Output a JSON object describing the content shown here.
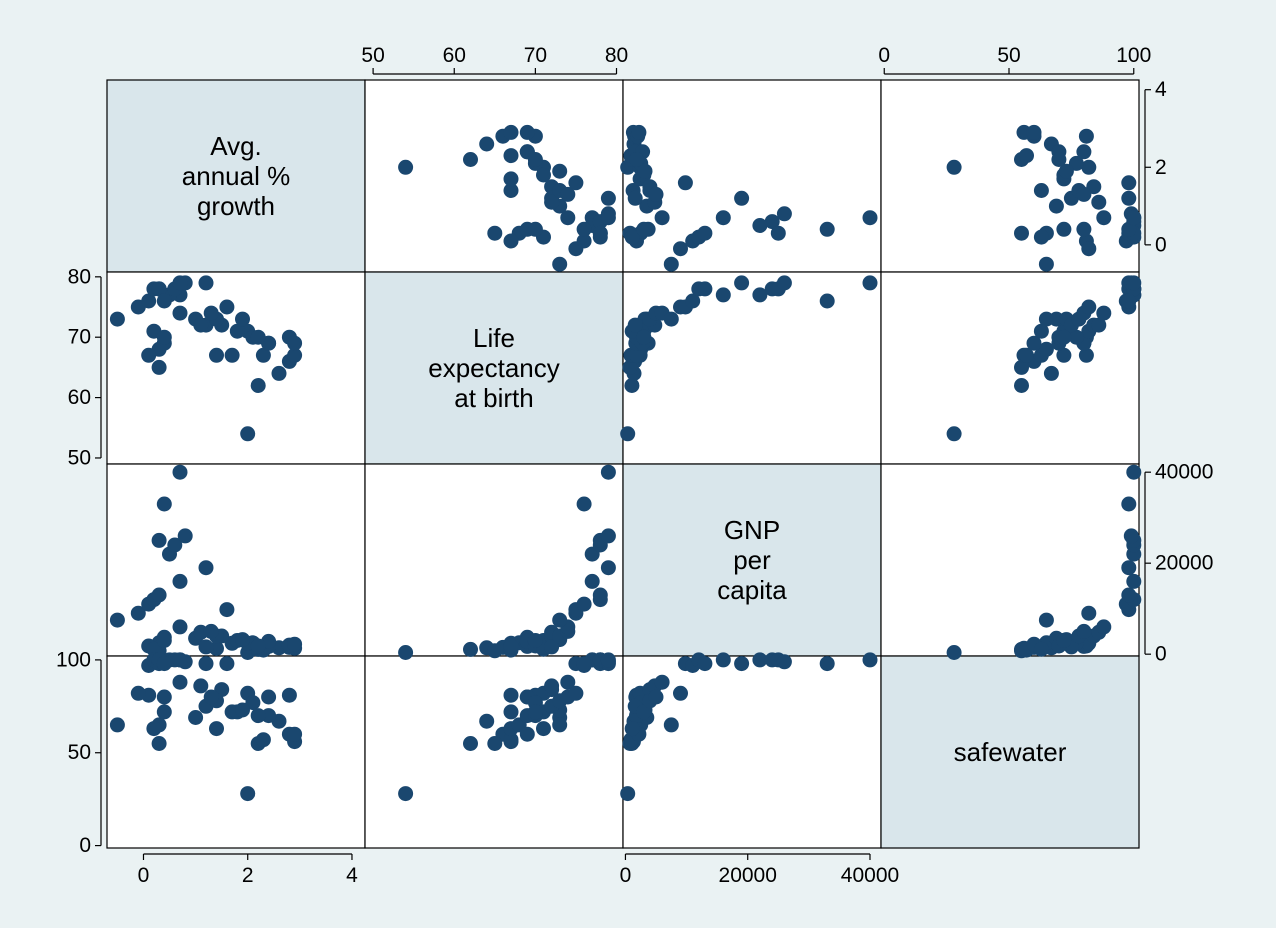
{
  "colors": {
    "background": "#eaf2f3",
    "cell_bg": "#ffffff",
    "diag_bg": "#d9e6eb",
    "marker": "#1a476f",
    "frame": "#000000"
  },
  "chart_data": {
    "type": "scatter",
    "subtype": "scatter-matrix",
    "grid": false,
    "legend": "none",
    "variables": [
      {
        "key": "growth",
        "label_lines": [
          "Avg.",
          "annual %",
          "growth"
        ],
        "range": [
          -0.7,
          4.25
        ],
        "ticks": [
          "0",
          "2",
          "4"
        ]
      },
      {
        "key": "lexp",
        "label_lines": [
          "Life",
          "expectancy",
          "at birth"
        ],
        "range": [
          49.0,
          80.8
        ],
        "ticks": [
          "50",
          "60",
          "70",
          "80"
        ]
      },
      {
        "key": "gnppc",
        "label_lines": [
          "GNP",
          "per",
          "capita"
        ],
        "range": [
          -400,
          41800
        ],
        "ticks": [
          "0",
          "20000",
          "40000"
        ]
      },
      {
        "key": "safewater",
        "label_lines": [
          "safewater"
        ],
        "range": [
          -1.3,
          102.1
        ],
        "ticks": [
          "0",
          "50",
          "100"
        ]
      }
    ],
    "axes": {
      "top": {
        "growth": [],
        "lexp": [
          "50",
          "60",
          "70",
          "80"
        ],
        "gnppc": [],
        "safewater": [
          "0",
          "50",
          "100"
        ]
      },
      "bottom": {
        "growth": [
          "0",
          "2",
          "4"
        ],
        "lexp": [],
        "gnppc": [
          "0",
          "20000",
          "40000"
        ],
        "safewater": []
      },
      "left": {
        "growth": [],
        "lexp": [
          "50",
          "60",
          "70",
          "80"
        ],
        "gnppc": [],
        "safewater": [
          "0",
          "50",
          "100"
        ]
      },
      "right": {
        "growth": [
          "0",
          "2",
          "4"
        ],
        "lexp": [],
        "gnppc": [
          "0",
          "20000",
          "40000"
        ],
        "safewater": []
      }
    },
    "observations": [
      {
        "growth": 2.0,
        "lexp": 54,
        "gnppc": 370,
        "safewater": 28
      },
      {
        "growth": 2.2,
        "lexp": 62,
        "gnppc": 1060,
        "safewater": 55
      },
      {
        "growth": 2.6,
        "lexp": 64,
        "gnppc": 1400,
        "safewater": 67
      },
      {
        "growth": 2.8,
        "lexp": 66,
        "gnppc": 1500,
        "safewater": 60
      },
      {
        "growth": 0.3,
        "lexp": 65,
        "gnppc": 750,
        "safewater": 55
      },
      {
        "growth": 2.9,
        "lexp": 67,
        "gnppc": 1300,
        "safewater": 56
      },
      {
        "growth": 2.3,
        "lexp": 67,
        "gnppc": 900,
        "safewater": 57
      },
      {
        "growth": 1.4,
        "lexp": 67,
        "gnppc": 1250,
        "safewater": 63
      },
      {
        "growth": 0.3,
        "lexp": 68,
        "gnppc": 2500,
        "safewater": 65
      },
      {
        "growth": 1.7,
        "lexp": 67,
        "gnppc": 2400,
        "safewater": 72
      },
      {
        "growth": 0.1,
        "lexp": 67,
        "gnppc": 1800,
        "safewater": 81
      },
      {
        "growth": 0.4,
        "lexp": 69,
        "gnppc": 3700,
        "safewater": 80
      },
      {
        "growth": 2.8,
        "lexp": 70,
        "gnppc": 2000,
        "safewater": 81
      },
      {
        "growth": 2.9,
        "lexp": 69,
        "gnppc": 2200,
        "safewater": 60
      },
      {
        "growth": 2.4,
        "lexp": 69,
        "gnppc": 1700,
        "safewater": 80
      },
      {
        "growth": 2.0,
        "lexp": 71,
        "gnppc": 2400,
        "safewater": 82
      },
      {
        "growth": 2.4,
        "lexp": 69,
        "gnppc": 2800,
        "safewater": 70
      },
      {
        "growth": 2.1,
        "lexp": 70,
        "gnppc": 2500,
        "safewater": 77
      },
      {
        "growth": 1.8,
        "lexp": 71,
        "gnppc": 3000,
        "safewater": 72
      },
      {
        "growth": 1.0,
        "lexp": 73,
        "gnppc": 3500,
        "safewater": 69
      },
      {
        "growth": 1.9,
        "lexp": 73,
        "gnppc": 3200,
        "safewater": 73
      },
      {
        "growth": 2.2,
        "lexp": 70,
        "gnppc": 1800,
        "safewater": 70
      },
      {
        "growth": 0.2,
        "lexp": 71,
        "gnppc": 1100,
        "safewater": 63
      },
      {
        "growth": 1.5,
        "lexp": 72,
        "gnppc": 4000,
        "safewater": 84
      },
      {
        "growth": 1.2,
        "lexp": 72,
        "gnppc": 1600,
        "safewater": 75
      },
      {
        "growth": 0.4,
        "lexp": 70,
        "gnppc": 3000,
        "safewater": 72
      },
      {
        "growth": 1.1,
        "lexp": 72,
        "gnppc": 4800,
        "safewater": 86
      },
      {
        "growth": 1.4,
        "lexp": 73,
        "gnppc": 4000,
        "safewater": 78
      },
      {
        "growth": 1.3,
        "lexp": 74,
        "gnppc": 5000,
        "safewater": 80
      },
      {
        "growth": 0.7,
        "lexp": 74,
        "gnppc": 6000,
        "safewater": 88
      },
      {
        "growth": -0.5,
        "lexp": 73,
        "gnppc": 7500,
        "safewater": 65
      },
      {
        "growth": -0.1,
        "lexp": 75,
        "gnppc": 9000,
        "safewater": 82
      },
      {
        "growth": 1.6,
        "lexp": 75,
        "gnppc": 9800,
        "safewater": 98
      },
      {
        "growth": 0.1,
        "lexp": 76,
        "gnppc": 11000,
        "safewater": 97
      },
      {
        "growth": 0.2,
        "lexp": 78,
        "gnppc": 12000,
        "safewater": 100
      },
      {
        "growth": 0.3,
        "lexp": 78,
        "gnppc": 13000,
        "safewater": 98
      },
      {
        "growth": 0.7,
        "lexp": 77,
        "gnppc": 16000,
        "safewater": 100
      },
      {
        "growth": 1.2,
        "lexp": 79,
        "gnppc": 19000,
        "safewater": 98
      },
      {
        "growth": 0.5,
        "lexp": 77,
        "gnppc": 22000,
        "safewater": 100
      },
      {
        "growth": 0.6,
        "lexp": 78,
        "gnppc": 24000,
        "safewater": 100
      },
      {
        "growth": 0.3,
        "lexp": 78,
        "gnppc": 25000,
        "safewater": 100
      },
      {
        "growth": 0.8,
        "lexp": 79,
        "gnppc": 26000,
        "safewater": 99
      },
      {
        "growth": 0.4,
        "lexp": 76,
        "gnppc": 33000,
        "safewater": 98
      },
      {
        "growth": 0.7,
        "lexp": 79,
        "gnppc": 40000,
        "safewater": 100
      }
    ]
  }
}
